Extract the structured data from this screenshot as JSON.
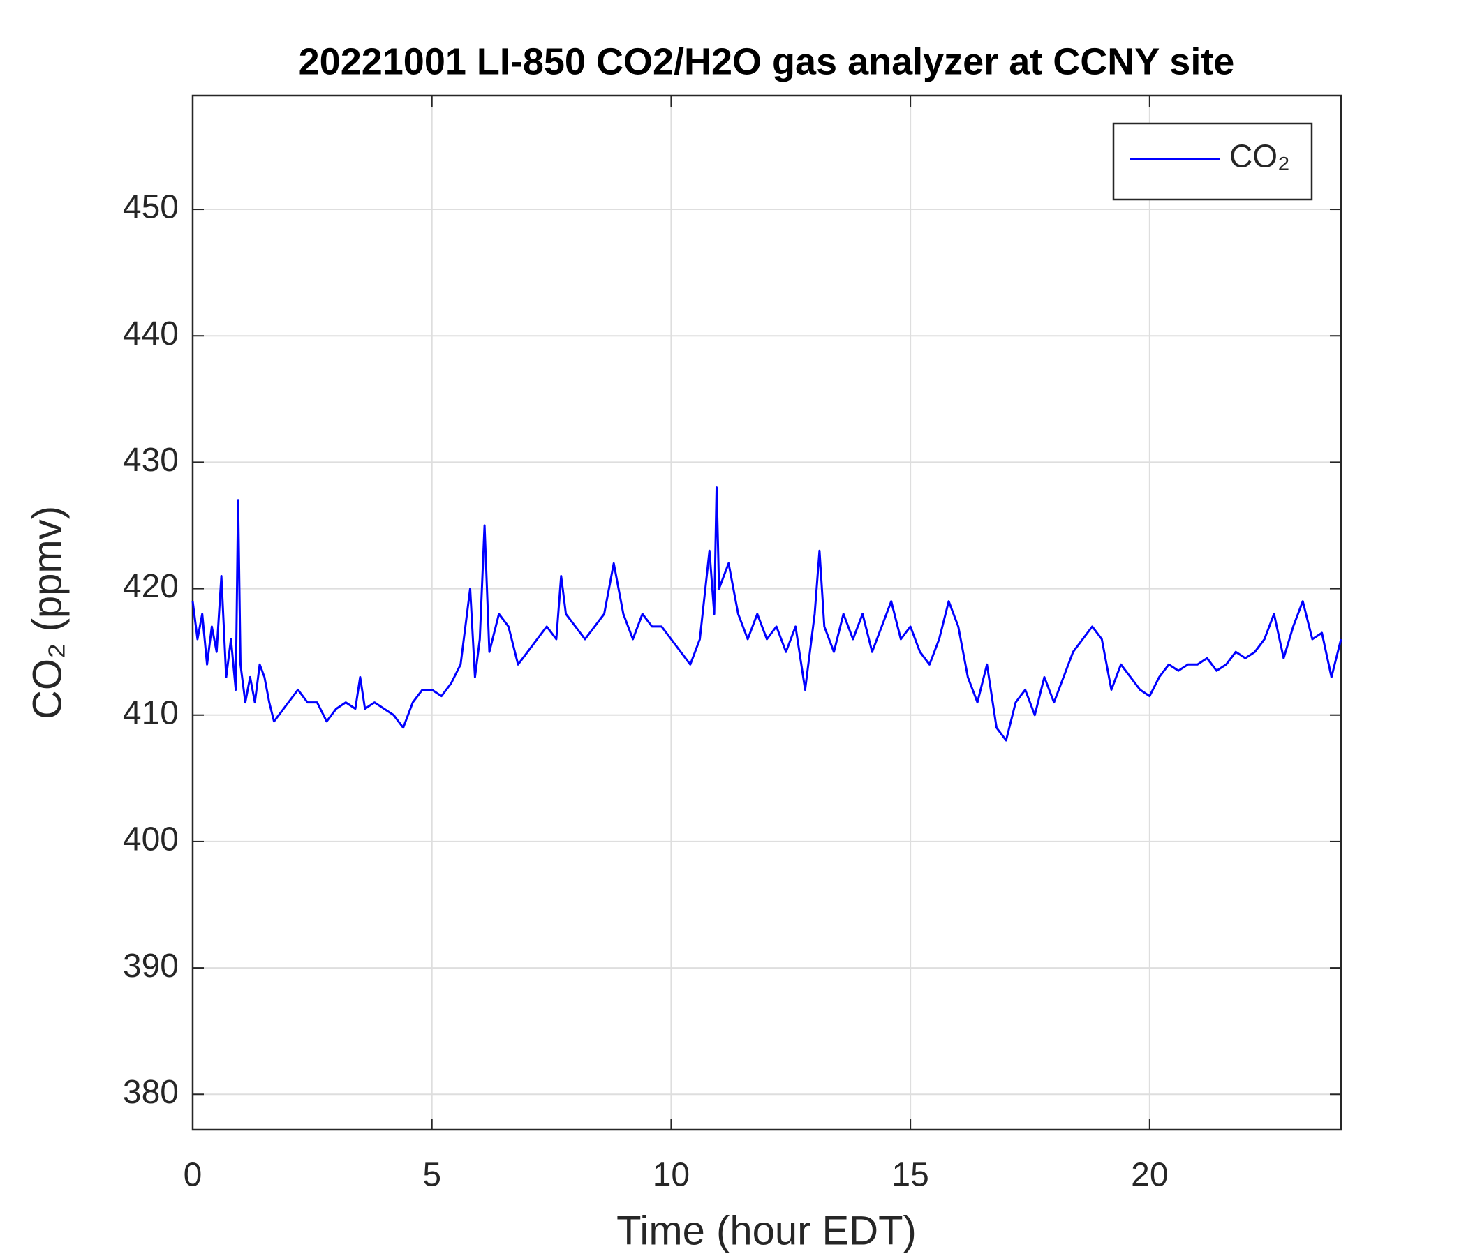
{
  "chart_data": {
    "type": "line",
    "title": "20221001 LI-850 CO2/H2O gas analyzer at CCNY site",
    "xlabel": "Time (hour EDT)",
    "ylabel": "CO₂ (ppmv)",
    "xlim": [
      0,
      24
    ],
    "ylim": [
      377.2,
      459
    ],
    "xticks": [
      0,
      5,
      10,
      15,
      20
    ],
    "yticks": [
      380,
      390,
      400,
      410,
      420,
      430,
      440,
      450
    ],
    "grid": true,
    "legend": "top-right",
    "x": [
      0,
      0.1,
      0.2,
      0.3,
      0.4,
      0.5,
      0.6,
      0.7,
      0.8,
      0.9,
      0.95,
      1.0,
      1.1,
      1.2,
      1.3,
      1.4,
      1.5,
      1.6,
      1.7,
      1.8,
      2.0,
      2.2,
      2.4,
      2.6,
      2.8,
      3.0,
      3.2,
      3.4,
      3.5,
      3.6,
      3.8,
      4.0,
      4.2,
      4.4,
      4.6,
      4.8,
      5.0,
      5.2,
      5.4,
      5.6,
      5.8,
      5.9,
      6.0,
      6.1,
      6.2,
      6.4,
      6.6,
      6.8,
      7.0,
      7.2,
      7.4,
      7.6,
      7.7,
      7.8,
      8.0,
      8.2,
      8.4,
      8.6,
      8.8,
      9.0,
      9.2,
      9.4,
      9.6,
      9.8,
      10.0,
      10.2,
      10.4,
      10.6,
      10.8,
      10.9,
      10.95,
      11.0,
      11.2,
      11.4,
      11.6,
      11.8,
      12.0,
      12.2,
      12.4,
      12.6,
      12.8,
      13.0,
      13.1,
      13.2,
      13.4,
      13.6,
      13.8,
      14.0,
      14.2,
      14.4,
      14.6,
      14.8,
      15.0,
      15.2,
      15.4,
      15.6,
      15.8,
      16.0,
      16.2,
      16.4,
      16.6,
      16.8,
      17.0,
      17.2,
      17.4,
      17.6,
      17.8,
      18.0,
      18.2,
      18.4,
      18.6,
      18.8,
      19.0,
      19.2,
      19.4,
      19.6,
      19.8,
      20.0,
      20.2,
      20.4,
      20.6,
      20.8,
      21.0,
      21.2,
      21.4,
      21.6,
      21.8,
      22.0,
      22.2,
      22.4,
      22.6,
      22.8,
      23.0,
      23.2,
      23.4,
      23.6,
      23.8,
      24.0
    ],
    "series": [
      {
        "name": "CO₂",
        "color": "#0000ff",
        "values": [
          419,
          416,
          418,
          414,
          417,
          415,
          421,
          413,
          416,
          412,
          427,
          414,
          411,
          413,
          411,
          414,
          413,
          411,
          409.5,
          410,
          411,
          412,
          411,
          411,
          409.5,
          410.5,
          411,
          410.5,
          413,
          410.5,
          411,
          410.5,
          410,
          409,
          411,
          412,
          412,
          411.5,
          412.5,
          414,
          420,
          413,
          416,
          425,
          415,
          418,
          417,
          414,
          415,
          416,
          417,
          416,
          421,
          418,
          417,
          416,
          417,
          418,
          422,
          418,
          416,
          418,
          417,
          417,
          416,
          415,
          414,
          416,
          423,
          418,
          428,
          420,
          422,
          418,
          416,
          418,
          416,
          417,
          415,
          417,
          412,
          418,
          423,
          417,
          415,
          418,
          416,
          418,
          415,
          417,
          419,
          416,
          417,
          415,
          414,
          416,
          419,
          417,
          413,
          411,
          414,
          409,
          408,
          411,
          412,
          410,
          413,
          411,
          413,
          415,
          416,
          417,
          416,
          412,
          414,
          413,
          412,
          411.5,
          413,
          414,
          413.5,
          414,
          414,
          414.5,
          413.5,
          414,
          415,
          414.5,
          415,
          416,
          418,
          414.5,
          417,
          419,
          416,
          416.5,
          413,
          416
        ]
      }
    ]
  }
}
